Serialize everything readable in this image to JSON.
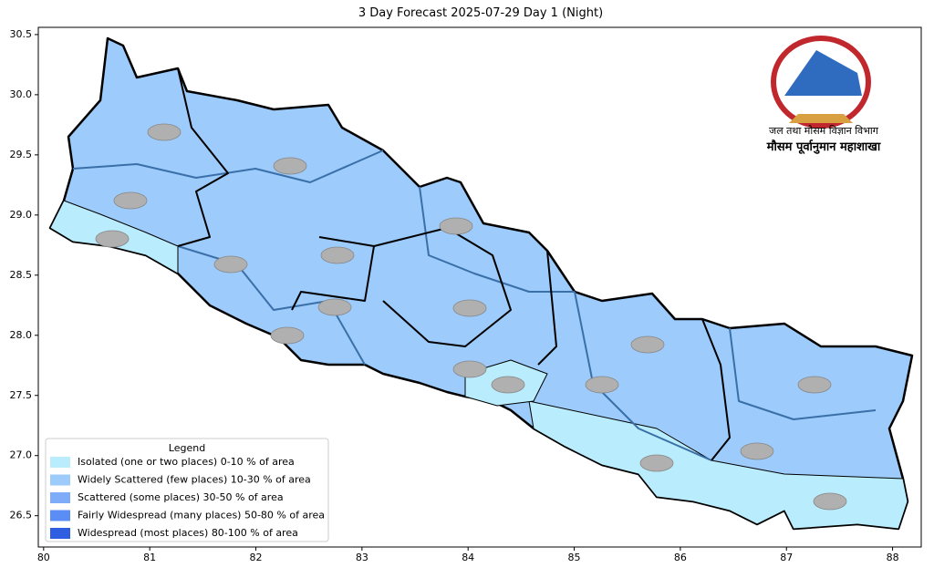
{
  "chart_data": {
    "type": "map",
    "title": "3 Day Forecast 2025-07-29 Day 1 (Night)",
    "xlim": [
      79.95,
      88.27
    ],
    "ylim": [
      26.24,
      30.56
    ],
    "xticks": [
      80,
      81,
      82,
      83,
      84,
      85,
      86,
      87,
      88
    ],
    "yticks": [
      30.5,
      {
        "value": 30,
        "label": "30.0"
      },
      29.5,
      {
        "value": 29,
        "label": "29.0"
      },
      28.5,
      {
        "value": 28,
        "label": "28.0"
      },
      27.5,
      {
        "value": 27,
        "label": "27.0"
      },
      26.5
    ],
    "legend": {
      "title": "Legend",
      "items": [
        {
          "label": "Isolated (one or two places)  0-10 % of area",
          "color": "#b9ecfc"
        },
        {
          "label": "Widely Scattered (few places) 10-30 % of area",
          "color": "#9ccbfc"
        },
        {
          "label": "Scattered (some places) 30-50  % of area",
          "color": "#7eacf8"
        },
        {
          "label": "Fairly Widespread (many places) 50-80 % of area",
          "color": "#5a8ef6"
        },
        {
          "label": "Widespread (most places) 80-100 % of area",
          "color": "#2f5fe0"
        }
      ]
    },
    "logo_text": [
      "जल तथा मौसम विज्ञान विभाग",
      "मौसम पूर्वानुमान महाशाखा"
    ]
  }
}
